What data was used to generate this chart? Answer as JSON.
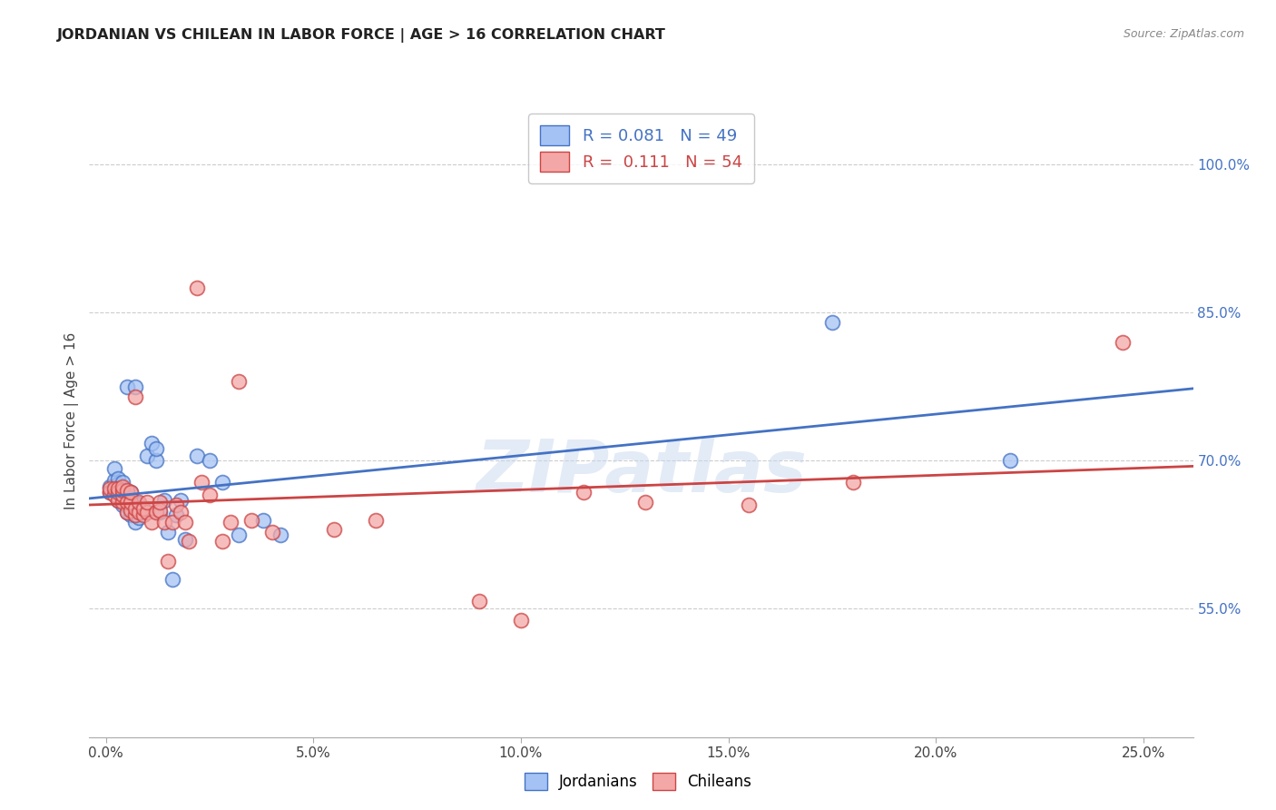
{
  "title": "JORDANIAN VS CHILEAN IN LABOR FORCE | AGE > 16 CORRELATION CHART",
  "source": "Source: ZipAtlas.com",
  "ylabel": "In Labor Force | Age > 16",
  "xtick_vals": [
    0.0,
    0.05,
    0.1,
    0.15,
    0.2,
    0.25
  ],
  "xtick_labels": [
    "0.0%",
    "5.0%",
    "10.0%",
    "15.0%",
    "20.0%",
    "25.0%"
  ],
  "ytick_vals": [
    0.55,
    0.7,
    0.85,
    1.0
  ],
  "ytick_labels": [
    "55.0%",
    "70.0%",
    "85.0%",
    "100.0%"
  ],
  "xlim": [
    -0.004,
    0.262
  ],
  "ylim": [
    0.42,
    1.06
  ],
  "jordanian_R": "0.081",
  "jordanian_N": "49",
  "chilean_R": "0.111",
  "chilean_N": "54",
  "jcolor_fill": "#a4c2f4",
  "jcolor_edge": "#4472c4",
  "ccolor_fill": "#f4a7a7",
  "ccolor_edge": "#cc4444",
  "j_line_color": "#4472c4",
  "c_line_color": "#cc4444",
  "watermark": "ZIPatlas",
  "jordanian_x": [
    0.001,
    0.001,
    0.002,
    0.002,
    0.002,
    0.003,
    0.003,
    0.003,
    0.003,
    0.004,
    0.004,
    0.004,
    0.004,
    0.004,
    0.005,
    0.005,
    0.005,
    0.005,
    0.005,
    0.006,
    0.006,
    0.006,
    0.007,
    0.007,
    0.007,
    0.007,
    0.008,
    0.008,
    0.009,
    0.01,
    0.01,
    0.011,
    0.012,
    0.012,
    0.013,
    0.014,
    0.015,
    0.016,
    0.017,
    0.018,
    0.019,
    0.022,
    0.025,
    0.028,
    0.032,
    0.038,
    0.042,
    0.175,
    0.218
  ],
  "jordanian_y": [
    0.668,
    0.674,
    0.67,
    0.68,
    0.692,
    0.66,
    0.668,
    0.676,
    0.682,
    0.655,
    0.662,
    0.668,
    0.672,
    0.678,
    0.648,
    0.655,
    0.662,
    0.668,
    0.775,
    0.645,
    0.652,
    0.668,
    0.638,
    0.645,
    0.655,
    0.775,
    0.642,
    0.656,
    0.648,
    0.652,
    0.705,
    0.718,
    0.7,
    0.712,
    0.648,
    0.66,
    0.628,
    0.58,
    0.645,
    0.66,
    0.62,
    0.705,
    0.7,
    0.678,
    0.625,
    0.64,
    0.625,
    0.84,
    0.7
  ],
  "chilean_x": [
    0.001,
    0.001,
    0.002,
    0.002,
    0.003,
    0.003,
    0.003,
    0.004,
    0.004,
    0.004,
    0.004,
    0.005,
    0.005,
    0.005,
    0.006,
    0.006,
    0.006,
    0.007,
    0.007,
    0.007,
    0.008,
    0.008,
    0.009,
    0.009,
    0.01,
    0.01,
    0.011,
    0.012,
    0.013,
    0.013,
    0.014,
    0.015,
    0.016,
    0.017,
    0.018,
    0.019,
    0.02,
    0.022,
    0.023,
    0.025,
    0.028,
    0.03,
    0.032,
    0.035,
    0.04,
    0.055,
    0.065,
    0.09,
    0.1,
    0.115,
    0.13,
    0.155,
    0.18,
    0.245
  ],
  "chilean_y": [
    0.668,
    0.672,
    0.665,
    0.672,
    0.66,
    0.668,
    0.672,
    0.658,
    0.665,
    0.67,
    0.674,
    0.648,
    0.658,
    0.67,
    0.65,
    0.658,
    0.668,
    0.645,
    0.652,
    0.765,
    0.648,
    0.658,
    0.645,
    0.652,
    0.648,
    0.658,
    0.638,
    0.648,
    0.65,
    0.658,
    0.638,
    0.598,
    0.638,
    0.655,
    0.648,
    0.638,
    0.618,
    0.875,
    0.678,
    0.665,
    0.618,
    0.638,
    0.78,
    0.64,
    0.628,
    0.63,
    0.64,
    0.558,
    0.538,
    0.668,
    0.658,
    0.655,
    0.678,
    0.82
  ]
}
